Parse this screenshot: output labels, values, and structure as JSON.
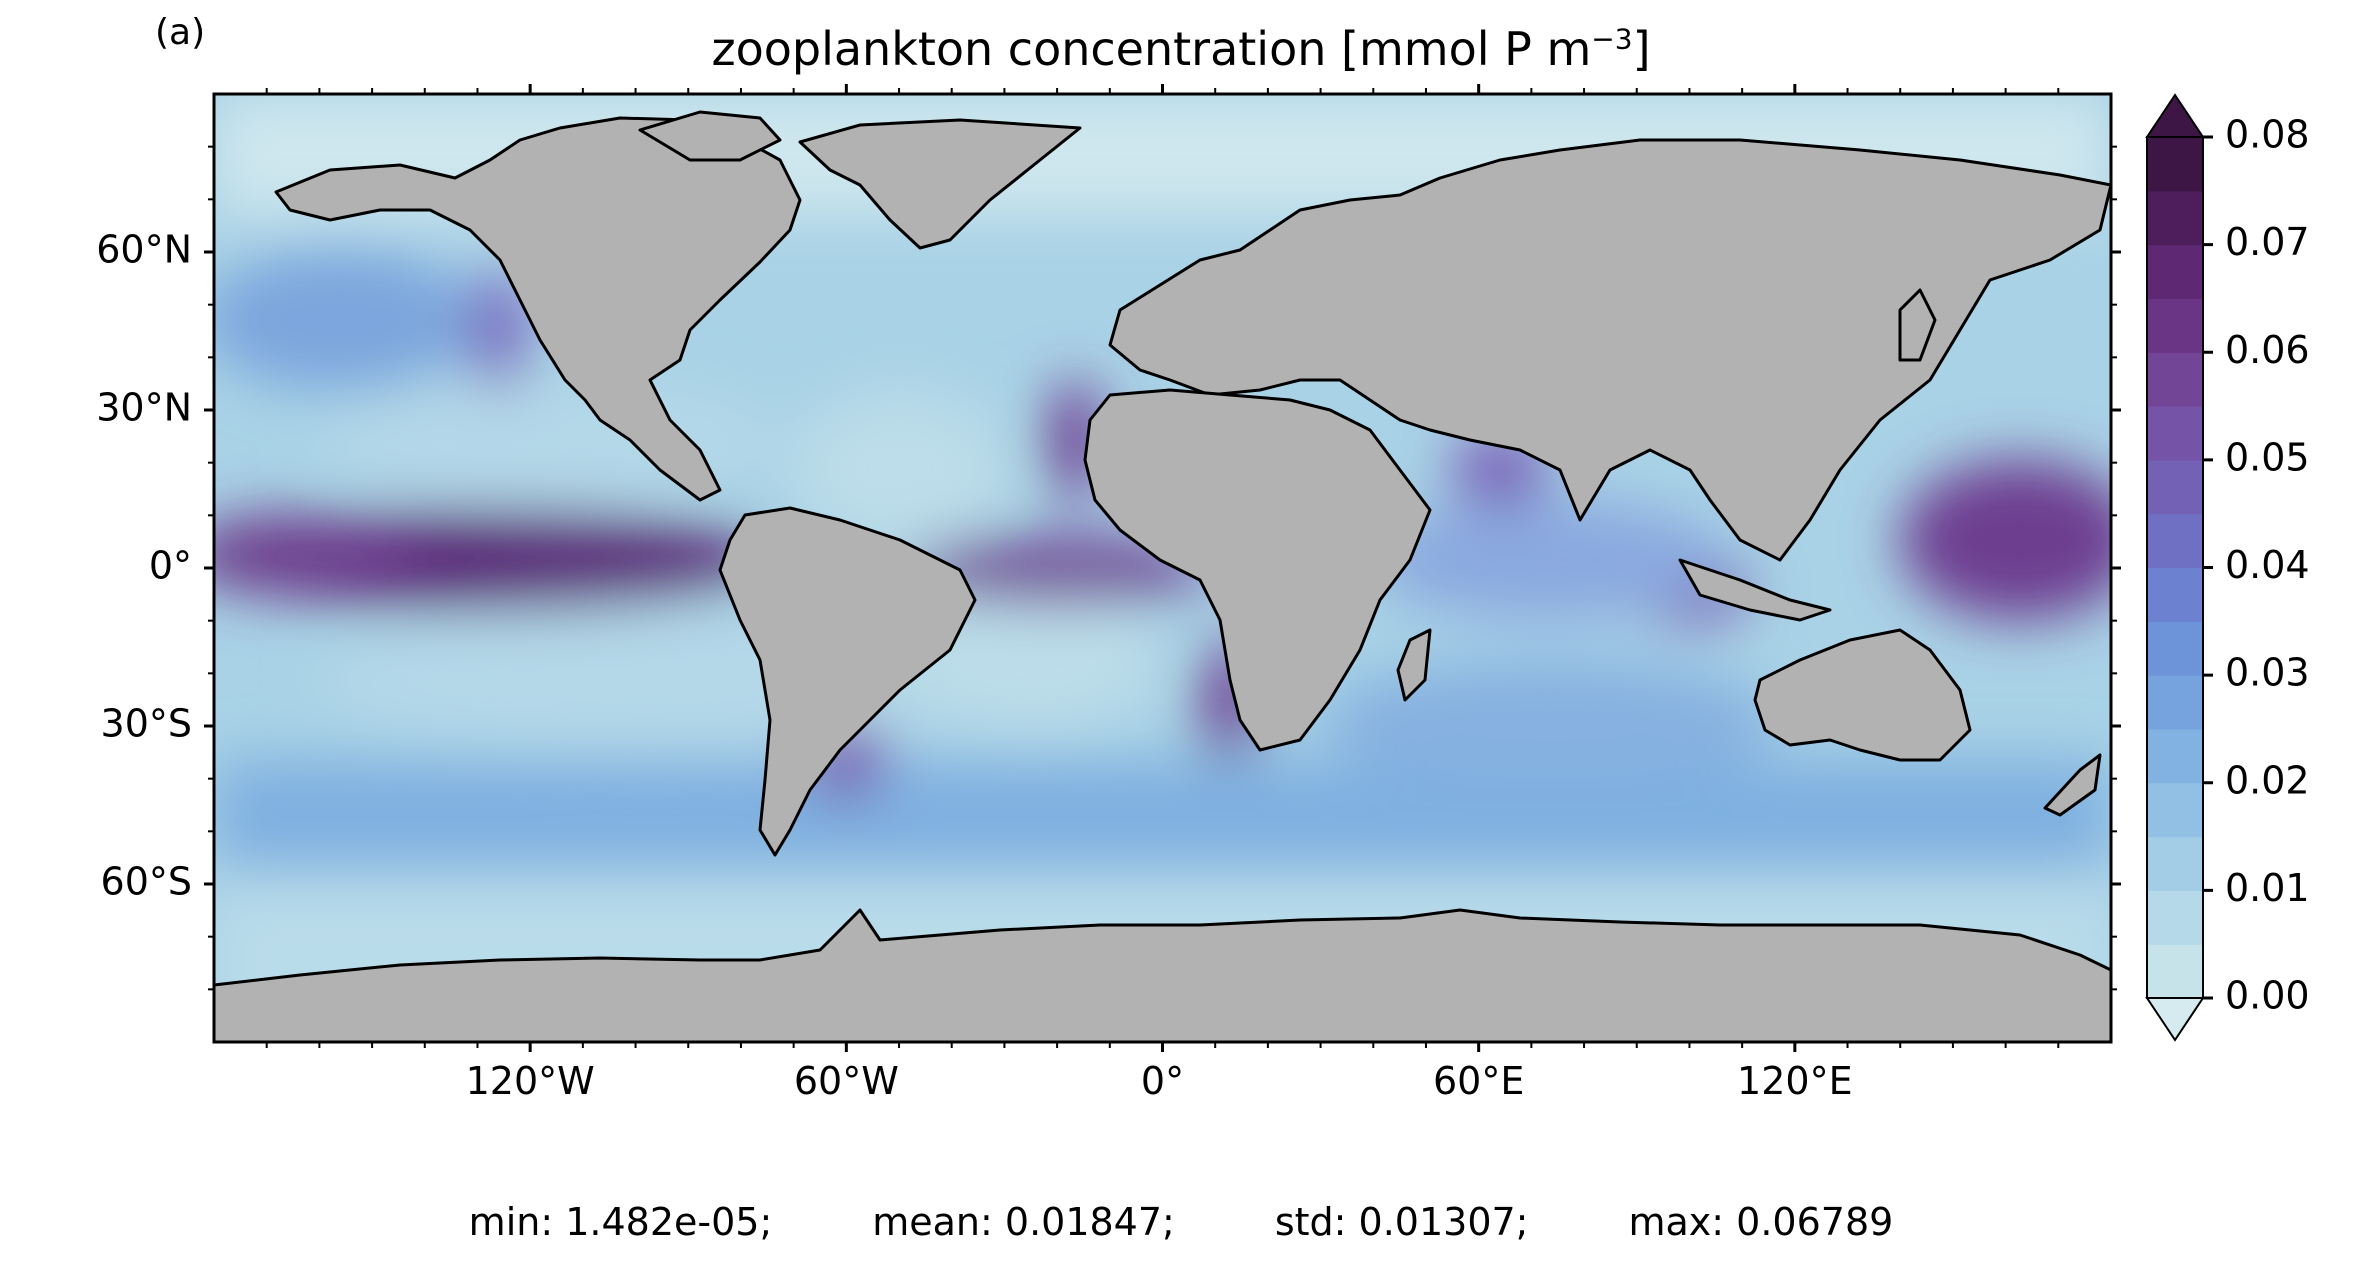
{
  "panel_label": "(a)",
  "title": "zooplankton concentration [mmol P m",
  "title_exponent": "−3",
  "title_close": "]",
  "axes": {
    "lat_labels": [
      {
        "text": "60°N",
        "lat": 60
      },
      {
        "text": "30°N",
        "lat": 30
      },
      {
        "text": "0°",
        "lat": 0
      },
      {
        "text": "30°S",
        "lat": -30
      },
      {
        "text": "60°S",
        "lat": -60
      }
    ],
    "lon_labels": [
      {
        "text": "120°W",
        "lon": -120
      },
      {
        "text": "60°W",
        "lon": -60
      },
      {
        "text": "0°",
        "lon": 0
      },
      {
        "text": "60°E",
        "lon": 60
      },
      {
        "text": "120°E",
        "lon": 120
      }
    ],
    "lon_range": [
      -180,
      180
    ],
    "lat_range": [
      -90,
      90
    ]
  },
  "colorbar": {
    "ticks": [
      "0.00",
      "0.01",
      "0.02",
      "0.03",
      "0.04",
      "0.05",
      "0.06",
      "0.07",
      "0.08"
    ],
    "range": [
      0.0,
      0.08
    ],
    "levels": 16,
    "extend": "both",
    "colors": [
      "#d6ebef",
      "#c6e3ea",
      "#b5d9e8",
      "#a3cde6",
      "#92c0e4",
      "#82b2e2",
      "#76a3de",
      "#6d93d9",
      "#6c82d1",
      "#6f70c4",
      "#7361b5",
      "#7553a6",
      "#734597",
      "#6b3586",
      "#5e2873",
      "#4d1d5c",
      "#3d1646"
    ]
  },
  "map": {
    "land_color": "#b2b2b2",
    "ice_color": "#ffffff",
    "coastline_color": "#000000",
    "ocean_base": "#a9d2e6"
  },
  "stats": {
    "min": "min: 1.482e-05;",
    "mean": "mean: 0.01847;",
    "std": "std: 0.01307;",
    "max": "max: 0.06789"
  }
}
